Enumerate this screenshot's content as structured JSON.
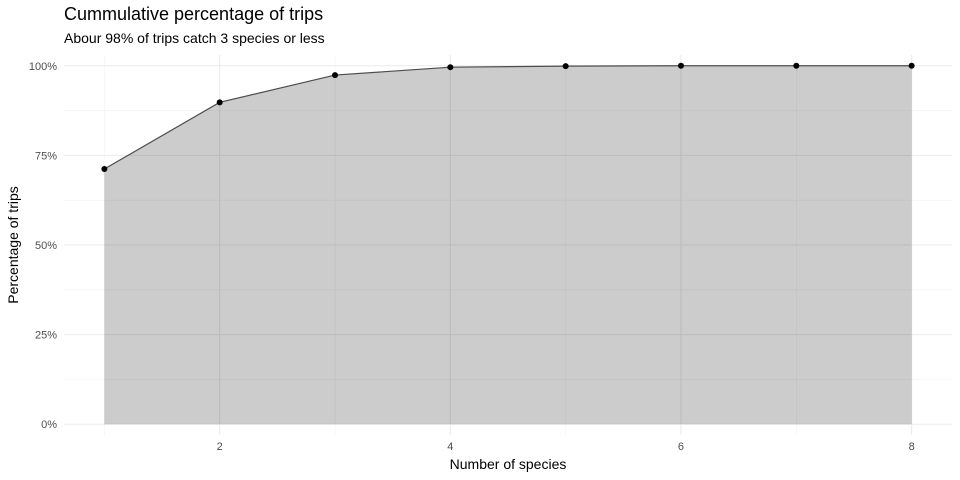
{
  "chart_data": {
    "type": "area",
    "title": "Cummulative percentage of trips",
    "subtitle": "Abour 98% of trips catch 3 species or less",
    "xlabel": "Number of species",
    "ylabel": "Percentage of trips",
    "x": [
      1,
      2,
      3,
      4,
      5,
      6,
      7,
      8
    ],
    "series": [
      {
        "values": [
          71.2,
          89.8,
          97.4,
          99.6,
          99.9,
          100,
          100,
          100
        ]
      }
    ],
    "xlim": [
      0.65,
      8.35
    ],
    "ylim": [
      -3,
      103
    ],
    "x_ticks": [
      2,
      4,
      6,
      8
    ],
    "x_tick_labels": [
      "2",
      "4",
      "6",
      "8"
    ],
    "y_ticks": [
      0,
      25,
      50,
      75,
      100
    ],
    "y_tick_labels": [
      "0%",
      "25%",
      "50%",
      "75%",
      "100%"
    ],
    "grid": true,
    "legend": "none",
    "colors": {
      "area_fill": "#cccccc",
      "line": "#4d4d4d",
      "point": "#000000",
      "grid_major": "#ebebeb",
      "grid_minor": "#f2f2f2",
      "tick_label": "#4d4d4d",
      "text": "#000000"
    }
  }
}
